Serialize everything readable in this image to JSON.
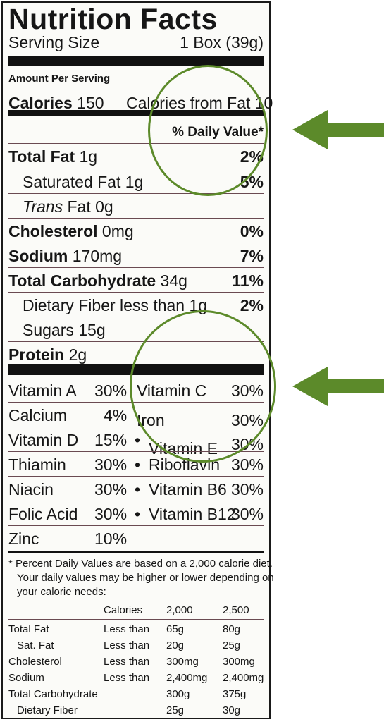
{
  "title": "Nutrition Facts",
  "serving": {
    "label": "Serving Size",
    "value": "1 Box (39g)"
  },
  "amount_per_serving": "Amount Per Serving",
  "calories": {
    "label": "Calories",
    "value": "150",
    "fat_text": "Calories from Fat 10"
  },
  "daily_value_header": "% Daily Value*",
  "nutrients": [
    {
      "name": "Total Fat",
      "amount": "1g",
      "dv": "2%"
    },
    {
      "name": "Saturated Fat",
      "amount": "1g",
      "dv": "5%"
    },
    {
      "name": "Trans",
      "amount": "Fat 0g",
      "dv": ""
    },
    {
      "name": "Cholesterol",
      "amount": "0mg",
      "dv": "0%"
    },
    {
      "name": "Sodium",
      "amount": "170mg",
      "dv": "7%"
    },
    {
      "name": "Total Carbohydrate",
      "amount": "34g",
      "dv": "11%"
    },
    {
      "name": "Dietary Fiber less than",
      "amount": "1g",
      "dv": "2%"
    },
    {
      "name": "Sugars",
      "amount": "15g",
      "dv": ""
    },
    {
      "name": "Protein",
      "amount": "2g",
      "dv": ""
    }
  ],
  "vitamins": [
    {
      "left": "Vitamin A",
      "left_pct": "30%",
      "right": "Vitamin C",
      "right_pct": "30%"
    },
    {
      "left": "Calcium",
      "left_pct": "4%",
      "right": "Iron",
      "right_pct": "30%"
    },
    {
      "left": "Vitamin D",
      "left_pct": "15%",
      "right": "Vitamin E",
      "right_pct": "30%"
    },
    {
      "left": "Thiamin",
      "left_pct": "30%",
      "right": "Riboflavin",
      "right_pct": "30%"
    },
    {
      "left": "Niacin",
      "left_pct": "30%",
      "right": "Vitamin B6",
      "right_pct": "30%"
    },
    {
      "left": "Folic Acid",
      "left_pct": "30%",
      "right": "Vitamin B12",
      "right_pct": "30%"
    },
    {
      "left": "Zinc",
      "left_pct": "10%",
      "right": "",
      "right_pct": ""
    }
  ],
  "bullet": "•",
  "footnote": [
    "* Percent Daily Values are based on a 2,000 calorie diet.",
    "Your daily values may be higher or lower depending on",
    "your calorie needs:"
  ],
  "dv_table": {
    "header": [
      "Calories",
      "2,000",
      "2,500"
    ],
    "rows": [
      [
        "Total Fat",
        "Less than",
        "65g",
        "80g"
      ],
      [
        "Sat. Fat",
        "Less than",
        "20g",
        "25g"
      ],
      [
        "Cholesterol",
        "Less than",
        "300mg",
        "300mg"
      ],
      [
        "Sodium",
        "Less than",
        "2,400mg",
        "2,400mg"
      ],
      [
        "Total Carbohydrate",
        "",
        "300g",
        "375g"
      ],
      [
        "Dietary Fiber",
        "",
        "25g",
        "30g"
      ]
    ]
  },
  "highlight_color": "#5c8a2a"
}
